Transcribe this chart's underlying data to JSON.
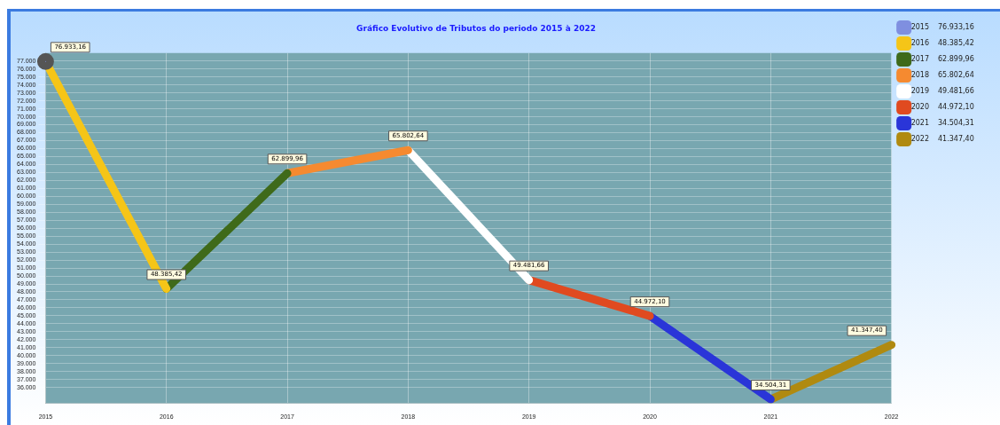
{
  "chart_data": {
    "type": "line",
    "title": "Gráfico Evolutivo de Tributos do periodo 2015 à 2022",
    "categories": [
      "2015",
      "2016",
      "2017",
      "2018",
      "2019",
      "2020",
      "2021",
      "2022"
    ],
    "series": [
      {
        "name": "2015",
        "color": "#7f8fe0",
        "marker": "circle",
        "values": [
          76933.16,
          null,
          null,
          null,
          null,
          null,
          null,
          null
        ],
        "value_labels": [
          "76.933,16",
          null,
          null,
          null,
          null,
          null,
          null,
          null
        ]
      },
      {
        "name": "2016",
        "color": "#f5c518",
        "values": [
          76933.16,
          48385.42,
          null,
          null,
          null,
          null,
          null,
          null
        ],
        "value_labels": [
          null,
          "48.385,42",
          null,
          null,
          null,
          null,
          null,
          null
        ]
      },
      {
        "name": "2017",
        "color": "#3f6a1a",
        "values": [
          null,
          48385.42,
          62899.96,
          null,
          null,
          null,
          null,
          null
        ],
        "value_labels": [
          null,
          null,
          "62.899,96",
          null,
          null,
          null,
          null,
          null
        ]
      },
      {
        "name": "2018",
        "color": "#f58a30",
        "values": [
          null,
          null,
          62899.96,
          65802.64,
          null,
          null,
          null,
          null
        ],
        "value_labels": [
          null,
          null,
          null,
          "65.802,64",
          null,
          null,
          null,
          null
        ]
      },
      {
        "name": "2019",
        "color": "#ffffff",
        "values": [
          null,
          null,
          null,
          65802.64,
          49481.66,
          null,
          null,
          null
        ],
        "value_labels": [
          null,
          null,
          null,
          null,
          "49.481,66",
          null,
          null,
          null
        ]
      },
      {
        "name": "2020",
        "color": "#e04a20",
        "values": [
          null,
          null,
          null,
          null,
          49481.66,
          44972.1,
          null,
          null
        ],
        "value_labels": [
          null,
          null,
          null,
          null,
          null,
          "44.972,10",
          null,
          null
        ]
      },
      {
        "name": "2021",
        "color": "#2a35d8",
        "values": [
          null,
          null,
          null,
          null,
          null,
          44972.1,
          34504.31,
          null
        ],
        "value_labels": [
          null,
          null,
          null,
          null,
          null,
          null,
          "34.504,31",
          null
        ]
      },
      {
        "name": "2022",
        "color": "#b08a10",
        "values": [
          null,
          null,
          null,
          null,
          null,
          null,
          34504.31,
          41347.4
        ],
        "value_labels": [
          null,
          null,
          null,
          null,
          null,
          null,
          null,
          "41.347,40"
        ]
      }
    ],
    "ylim": [
      34000,
      78000
    ],
    "yticks": [
      {
        "value": 36000,
        "label": "36.000"
      },
      {
        "value": 37000,
        "label": "37.000"
      },
      {
        "value": 38000,
        "label": "38.000"
      },
      {
        "value": 39000,
        "label": "39.000"
      },
      {
        "value": 40000,
        "label": "40.000"
      },
      {
        "value": 41000,
        "label": "41.000"
      },
      {
        "value": 42000,
        "label": "42.000"
      },
      {
        "value": 43000,
        "label": "43.000"
      },
      {
        "value": 44000,
        "label": "44.000"
      },
      {
        "value": 45000,
        "label": "45.000"
      },
      {
        "value": 46000,
        "label": "46.000"
      },
      {
        "value": 47000,
        "label": "47.000"
      },
      {
        "value": 48000,
        "label": "48.000"
      },
      {
        "value": 49000,
        "label": "49.000"
      },
      {
        "value": 50000,
        "label": "50.000"
      },
      {
        "value": 51000,
        "label": "51.000"
      },
      {
        "value": 52000,
        "label": "52.000"
      },
      {
        "value": 53000,
        "label": "53.000"
      },
      {
        "value": 54000,
        "label": "54.000"
      },
      {
        "value": 55000,
        "label": "55.000"
      },
      {
        "value": 56000,
        "label": "56.000"
      },
      {
        "value": 57000,
        "label": "57.000"
      },
      {
        "value": 58000,
        "label": "58.000"
      },
      {
        "value": 59000,
        "label": "59.000"
      },
      {
        "value": 60000,
        "label": "60.000"
      },
      {
        "value": 61000,
        "label": "61.000"
      },
      {
        "value": 62000,
        "label": "62.000"
      },
      {
        "value": 63000,
        "label": "63.000"
      },
      {
        "value": 64000,
        "label": "64.000"
      },
      {
        "value": 65000,
        "label": "65.000"
      },
      {
        "value": 66000,
        "label": "66.000"
      },
      {
        "value": 67000,
        "label": "67.000"
      },
      {
        "value": 68000,
        "label": "68.000"
      },
      {
        "value": 69000,
        "label": "69.000"
      },
      {
        "value": 70000,
        "label": "70.000"
      },
      {
        "value": 71000,
        "label": "71.000"
      },
      {
        "value": 72000,
        "label": "72.000"
      },
      {
        "value": 73000,
        "label": "73.000"
      },
      {
        "value": 74000,
        "label": "74.000"
      },
      {
        "value": 75000,
        "label": "75.000"
      },
      {
        "value": 76000,
        "label": "76.000"
      },
      {
        "value": 77000,
        "label": "77.000"
      }
    ],
    "grid": true,
    "legend": "top right",
    "marker": "none",
    "line_style": "solid"
  }
}
